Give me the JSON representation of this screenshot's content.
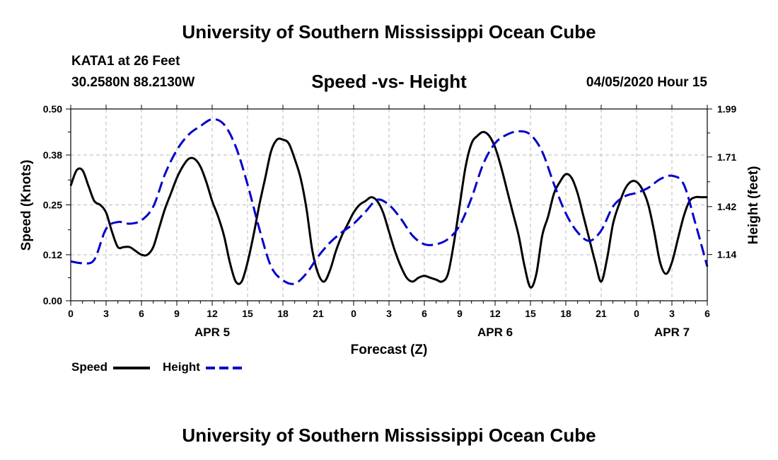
{
  "header": {
    "title": "University of Southern Mississippi Ocean Cube",
    "station": "KATA1 at 26 Feet",
    "coords": "30.2580N 88.2130W",
    "subtitle": "Speed -vs- Height",
    "datetime": "04/05/2020 Hour 15",
    "footer_title": "University of Southern Mississippi Ocean Cube"
  },
  "legend": {
    "speed_label": "Speed",
    "height_label": "Height"
  },
  "colors": {
    "speed": "#000000",
    "height": "#0000cc",
    "grid": "#bbbbbb"
  },
  "chart_data": {
    "type": "line",
    "title": "Speed -vs- Height",
    "xlabel": "Forecast (Z)",
    "ylabel": "Speed (Knots)",
    "y2label": "Height (feet)",
    "xlim": [
      0,
      54
    ],
    "ylim": [
      0,
      0.5
    ],
    "y2lim": [
      0.87,
      1.99
    ],
    "x_ticks": [
      0,
      3,
      6,
      9,
      12,
      15,
      18,
      21,
      24,
      27,
      30,
      33,
      36,
      39,
      42,
      45,
      48,
      51,
      54
    ],
    "x_tick_labels": [
      "0",
      "3",
      "6",
      "9",
      "12",
      "15",
      "18",
      "21",
      "0",
      "3",
      "6",
      "9",
      "12",
      "15",
      "18",
      "21",
      "0",
      "3",
      "6"
    ],
    "y_ticks": [
      0,
      0.12,
      0.25,
      0.38,
      0.5
    ],
    "y_tick_labels": [
      "0.00",
      "0.12",
      "0.25",
      "0.38",
      "0.50"
    ],
    "y2_ticks": [
      1.14,
      1.42,
      1.71,
      1.99
    ],
    "y2_tick_labels": [
      "1.14",
      "1.42",
      "1.71",
      "1.99"
    ],
    "day_labels": [
      {
        "x": 12,
        "label": "APR 5"
      },
      {
        "x": 36,
        "label": "APR 6"
      },
      {
        "x": 51,
        "label": "APR 7"
      }
    ],
    "grid": true,
    "series": [
      {
        "name": "Speed",
        "axis": "left",
        "style": "solid",
        "x": [
          0,
          0.5,
          1,
          1.5,
          2,
          2.5,
          3,
          3.5,
          4,
          4.5,
          5,
          5.5,
          6,
          6.5,
          7,
          7.5,
          8,
          8.5,
          9,
          9.5,
          10,
          10.5,
          11,
          11.5,
          12,
          12.5,
          13,
          13.5,
          14,
          14.5,
          15,
          15.5,
          16,
          16.5,
          17,
          17.5,
          18,
          18.5,
          19,
          19.5,
          20,
          20.5,
          21,
          21.5,
          22,
          22.5,
          23,
          23.5,
          24,
          24.5,
          25,
          25.5,
          26,
          26.5,
          27,
          27.5,
          28,
          28.5,
          29,
          29.5,
          30,
          30.5,
          31,
          31.5,
          32,
          32.5,
          33,
          33.5,
          34,
          34.5,
          35,
          35.5,
          36,
          36.5,
          37,
          37.5,
          38,
          38.5,
          39,
          39.5,
          40,
          40.5,
          41,
          41.5,
          42,
          42.5,
          43,
          43.5,
          44,
          44.5,
          45,
          45.5,
          46,
          46.5,
          47,
          47.5,
          48,
          48.5,
          49,
          49.5,
          50,
          50.5,
          51,
          51.5,
          52,
          52.5,
          53,
          53.5,
          54
        ],
        "values": [
          0.3,
          0.34,
          0.34,
          0.3,
          0.26,
          0.25,
          0.23,
          0.18,
          0.14,
          0.14,
          0.14,
          0.13,
          0.12,
          0.12,
          0.14,
          0.19,
          0.24,
          0.28,
          0.32,
          0.35,
          0.37,
          0.37,
          0.35,
          0.31,
          0.26,
          0.22,
          0.17,
          0.1,
          0.05,
          0.05,
          0.1,
          0.17,
          0.25,
          0.32,
          0.39,
          0.42,
          0.42,
          0.41,
          0.37,
          0.32,
          0.24,
          0.13,
          0.07,
          0.05,
          0.08,
          0.13,
          0.17,
          0.2,
          0.23,
          0.25,
          0.26,
          0.27,
          0.26,
          0.23,
          0.18,
          0.13,
          0.09,
          0.06,
          0.05,
          0.06,
          0.065,
          0.06,
          0.055,
          0.05,
          0.07,
          0.15,
          0.25,
          0.35,
          0.41,
          0.43,
          0.44,
          0.43,
          0.4,
          0.35,
          0.29,
          0.23,
          0.17,
          0.09,
          0.035,
          0.07,
          0.17,
          0.22,
          0.28,
          0.31,
          0.33,
          0.32,
          0.28,
          0.22,
          0.16,
          0.1,
          0.05,
          0.11,
          0.2,
          0.25,
          0.29,
          0.31,
          0.31,
          0.29,
          0.25,
          0.18,
          0.1,
          0.07,
          0.1,
          0.16,
          0.22,
          0.26,
          0.27,
          0.27,
          0.27
        ]
      },
      {
        "name": "Height",
        "axis": "right",
        "style": "dashed",
        "x": [
          0,
          1,
          2,
          3,
          4,
          5,
          6,
          7,
          8,
          9,
          10,
          11,
          12,
          13,
          14,
          15,
          16,
          17,
          18,
          19,
          20,
          21,
          22,
          23,
          24,
          25,
          26,
          27,
          28,
          29,
          30,
          31,
          32,
          33,
          34,
          35,
          36,
          37,
          38,
          39,
          40,
          41,
          42,
          43,
          44,
          45,
          46,
          47,
          48,
          49,
          50,
          51,
          52,
          53,
          54
        ],
        "values": [
          1.1,
          1.09,
          1.11,
          1.29,
          1.33,
          1.32,
          1.34,
          1.42,
          1.61,
          1.75,
          1.84,
          1.89,
          1.93,
          1.9,
          1.77,
          1.55,
          1.29,
          1.07,
          0.99,
          0.97,
          1.03,
          1.13,
          1.21,
          1.27,
          1.32,
          1.39,
          1.46,
          1.43,
          1.35,
          1.25,
          1.2,
          1.2,
          1.23,
          1.31,
          1.47,
          1.67,
          1.79,
          1.84,
          1.86,
          1.84,
          1.74,
          1.55,
          1.38,
          1.27,
          1.22,
          1.28,
          1.42,
          1.48,
          1.5,
          1.53,
          1.58,
          1.6,
          1.55,
          1.32,
          1.07
        ]
      }
    ]
  }
}
